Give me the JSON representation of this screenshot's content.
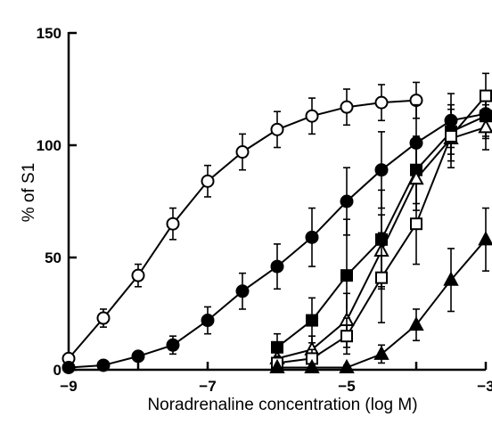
{
  "chart_data": {
    "type": "line",
    "xlabel": "Noradrenaline concentration (log M)",
    "ylabel": "% of S1",
    "xlim": [
      -9,
      -3
    ],
    "ylim": [
      0,
      150
    ],
    "xticks": [
      -9,
      -7,
      -5,
      -3
    ],
    "yticks": [
      0,
      50,
      100,
      150
    ],
    "xtick_labels": [
      "−9",
      "−7",
      "−5",
      "−3"
    ],
    "ytick_labels": [
      "0",
      "50",
      "100",
      "150"
    ],
    "grid": false,
    "legend": "none",
    "series": [
      {
        "marker": "open-circle",
        "x": [
          -9,
          -8.5,
          -8,
          -7.5,
          -7,
          -6.5,
          -6,
          -5.5,
          -5,
          -4.5,
          -4
        ],
        "y": [
          5,
          23,
          42,
          65,
          84,
          97,
          107,
          113,
          117,
          119,
          120
        ],
        "err": [
          0,
          4,
          5,
          7,
          7,
          8,
          8,
          8,
          8,
          8,
          8
        ]
      },
      {
        "marker": "filled-circle",
        "x": [
          -9,
          -8.5,
          -8,
          -7.5,
          -7,
          -6.5,
          -6,
          -5.5,
          -5,
          -4.5,
          -4,
          -3.5,
          -3
        ],
        "y": [
          1,
          2,
          6,
          11,
          22,
          35,
          46,
          59,
          75,
          89,
          101,
          111,
          114
        ],
        "err": [
          0,
          1,
          2,
          4,
          6,
          8,
          10,
          13,
          15,
          17,
          17,
          12,
          10
        ]
      },
      {
        "marker": "filled-square",
        "x": [
          -6,
          -5.5,
          -5,
          -4.5,
          -4,
          -3.5,
          -3
        ],
        "y": [
          10,
          22,
          42,
          58,
          89,
          106,
          113
        ],
        "err": [
          6,
          10,
          25,
          22,
          15,
          10,
          10
        ]
      },
      {
        "marker": "open-triangle",
        "x": [
          -6,
          -5.5,
          -5,
          -4.5,
          -4,
          -3.5,
          -3
        ],
        "y": [
          5,
          9,
          22,
          53,
          85,
          103,
          108
        ],
        "err": [
          4,
          6,
          12,
          16,
          14,
          10,
          10
        ]
      },
      {
        "marker": "open-square",
        "x": [
          -6,
          -5.5,
          -5,
          -4.5,
          -4,
          -3.5,
          -3
        ],
        "y": [
          3,
          5,
          15,
          41,
          65,
          104,
          122
        ],
        "err": [
          3,
          4,
          8,
          20,
          18,
          14,
          10
        ]
      },
      {
        "marker": "filled-triangle",
        "x": [
          -6,
          -5.5,
          -5,
          -4.5,
          -4,
          -3.5,
          -3
        ],
        "y": [
          1,
          1,
          1,
          7,
          20,
          40,
          58
        ],
        "err": [
          0,
          0,
          1,
          4,
          7,
          14,
          14
        ]
      }
    ]
  }
}
